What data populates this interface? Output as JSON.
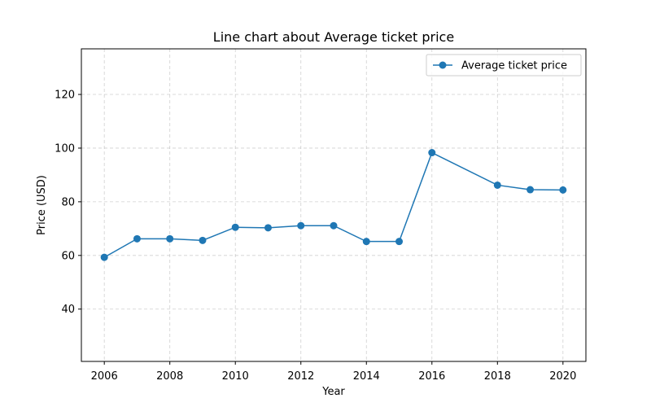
{
  "chart_data": {
    "type": "line",
    "title": "Line chart about Average ticket price",
    "xlabel": "Year",
    "ylabel": "Price (USD)",
    "x": [
      2006,
      2007,
      2008,
      2009,
      2010,
      2011,
      2012,
      2013,
      2014,
      2015,
      2016,
      2018,
      2019,
      2020
    ],
    "series": [
      {
        "name": "Average ticket price",
        "values": [
          59.3,
          66.2,
          66.2,
          65.6,
          70.5,
          70.3,
          71.1,
          71.1,
          65.2,
          65.2,
          98.3,
          86.2,
          84.5,
          84.4
        ],
        "color": "#1f77b4"
      }
    ],
    "xlim": [
      2005.3,
      2020.7
    ],
    "ylim": [
      20.5,
      137
    ],
    "xticks": [
      2006,
      2008,
      2010,
      2012,
      2014,
      2016,
      2018,
      2020
    ],
    "yticks": [
      40,
      60,
      80,
      100,
      120
    ],
    "grid": true,
    "legend_position": "top-right"
  }
}
